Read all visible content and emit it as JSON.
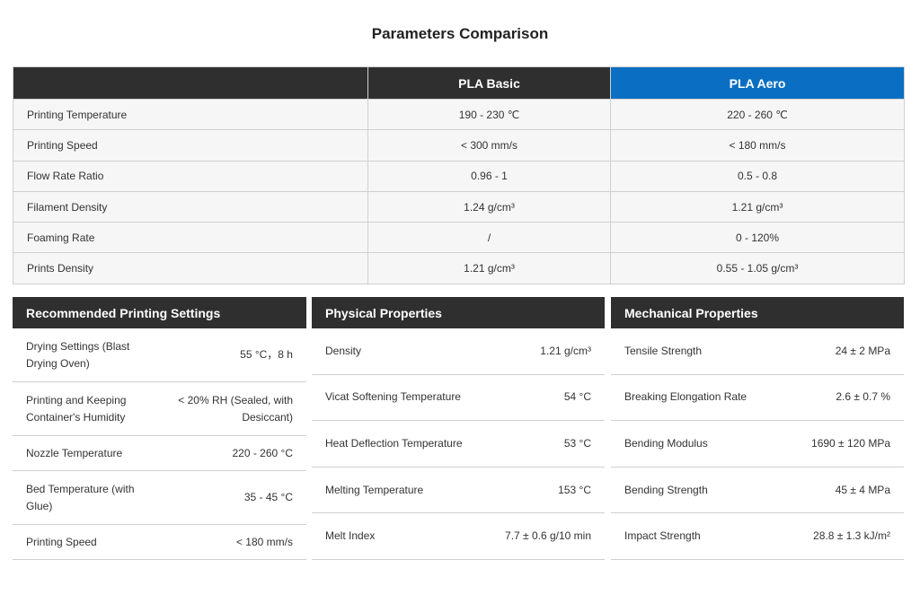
{
  "title": "Parameters Comparison",
  "comparison": {
    "headers": [
      "",
      "PLA Basic",
      "PLA Aero"
    ],
    "rows": [
      {
        "label": "Printing Temperature",
        "basic": "190 - 230 ℃",
        "aero": "220 - 260 ℃"
      },
      {
        "label": "Printing Speed",
        "basic": "< 300 mm/s",
        "aero": "< 180 mm/s"
      },
      {
        "label": "Flow Rate Ratio",
        "basic": "0.96 - 1",
        "aero": "0.5 - 0.8"
      },
      {
        "label": "Filament Density",
        "basic": "1.24 g/cm³",
        "aero": "1.21 g/cm³"
      },
      {
        "label": "Foaming Rate",
        "basic": "/",
        "aero": "0 - 120%"
      },
      {
        "label": "Prints Density",
        "basic": "1.21 g/cm³",
        "aero": "0.55 - 1.05 g/cm³"
      }
    ]
  },
  "recommended": {
    "title": "Recommended Printing Settings",
    "rows": [
      {
        "key": "Drying Settings (Blast Drying Oven)",
        "value": "55 °C，8 h"
      },
      {
        "key": "Printing and Keeping Container's Humidity",
        "value": "< 20% RH (Sealed, with Desiccant)"
      },
      {
        "key": "Nozzle Temperature",
        "value": "220 - 260 °C"
      },
      {
        "key": "Bed Temperature (with Glue)",
        "value": "35 - 45 °C"
      },
      {
        "key": "Printing Speed",
        "value": "< 180 mm/s"
      }
    ]
  },
  "physical": {
    "title": "Physical Properties",
    "rows": [
      {
        "key": "Density",
        "value": "1.21 g/cm³"
      },
      {
        "key": "Vicat Softening Temperature",
        "value": "54 °C"
      },
      {
        "key": "Heat Deflection Temperature",
        "value": "53 °C"
      },
      {
        "key": "Melting Temperature",
        "value": "153 °C"
      },
      {
        "key": "Melt Index",
        "value": "7.7 ± 0.6 g/10 min"
      }
    ]
  },
  "mechanical": {
    "title": "Mechanical Properties",
    "rows": [
      {
        "key": "Tensile Strength",
        "value": "24 ± 2 MPa"
      },
      {
        "key": "Breaking Elongation Rate",
        "value": "2.6 ± 0.7 %"
      },
      {
        "key": "Bending Modulus",
        "value": "1690 ± 120 MPa"
      },
      {
        "key": "Bending Strength",
        "value": "45 ± 4 MPa"
      },
      {
        "key": "Impact Strength",
        "value": "28.8 ± 1.3 kJ/m²"
      }
    ]
  },
  "colors": {
    "header_dark": "#2f2f2f",
    "accent_blue": "#0a6fc2",
    "row_bg": "#f6f6f6",
    "border": "#d0d0d0"
  }
}
